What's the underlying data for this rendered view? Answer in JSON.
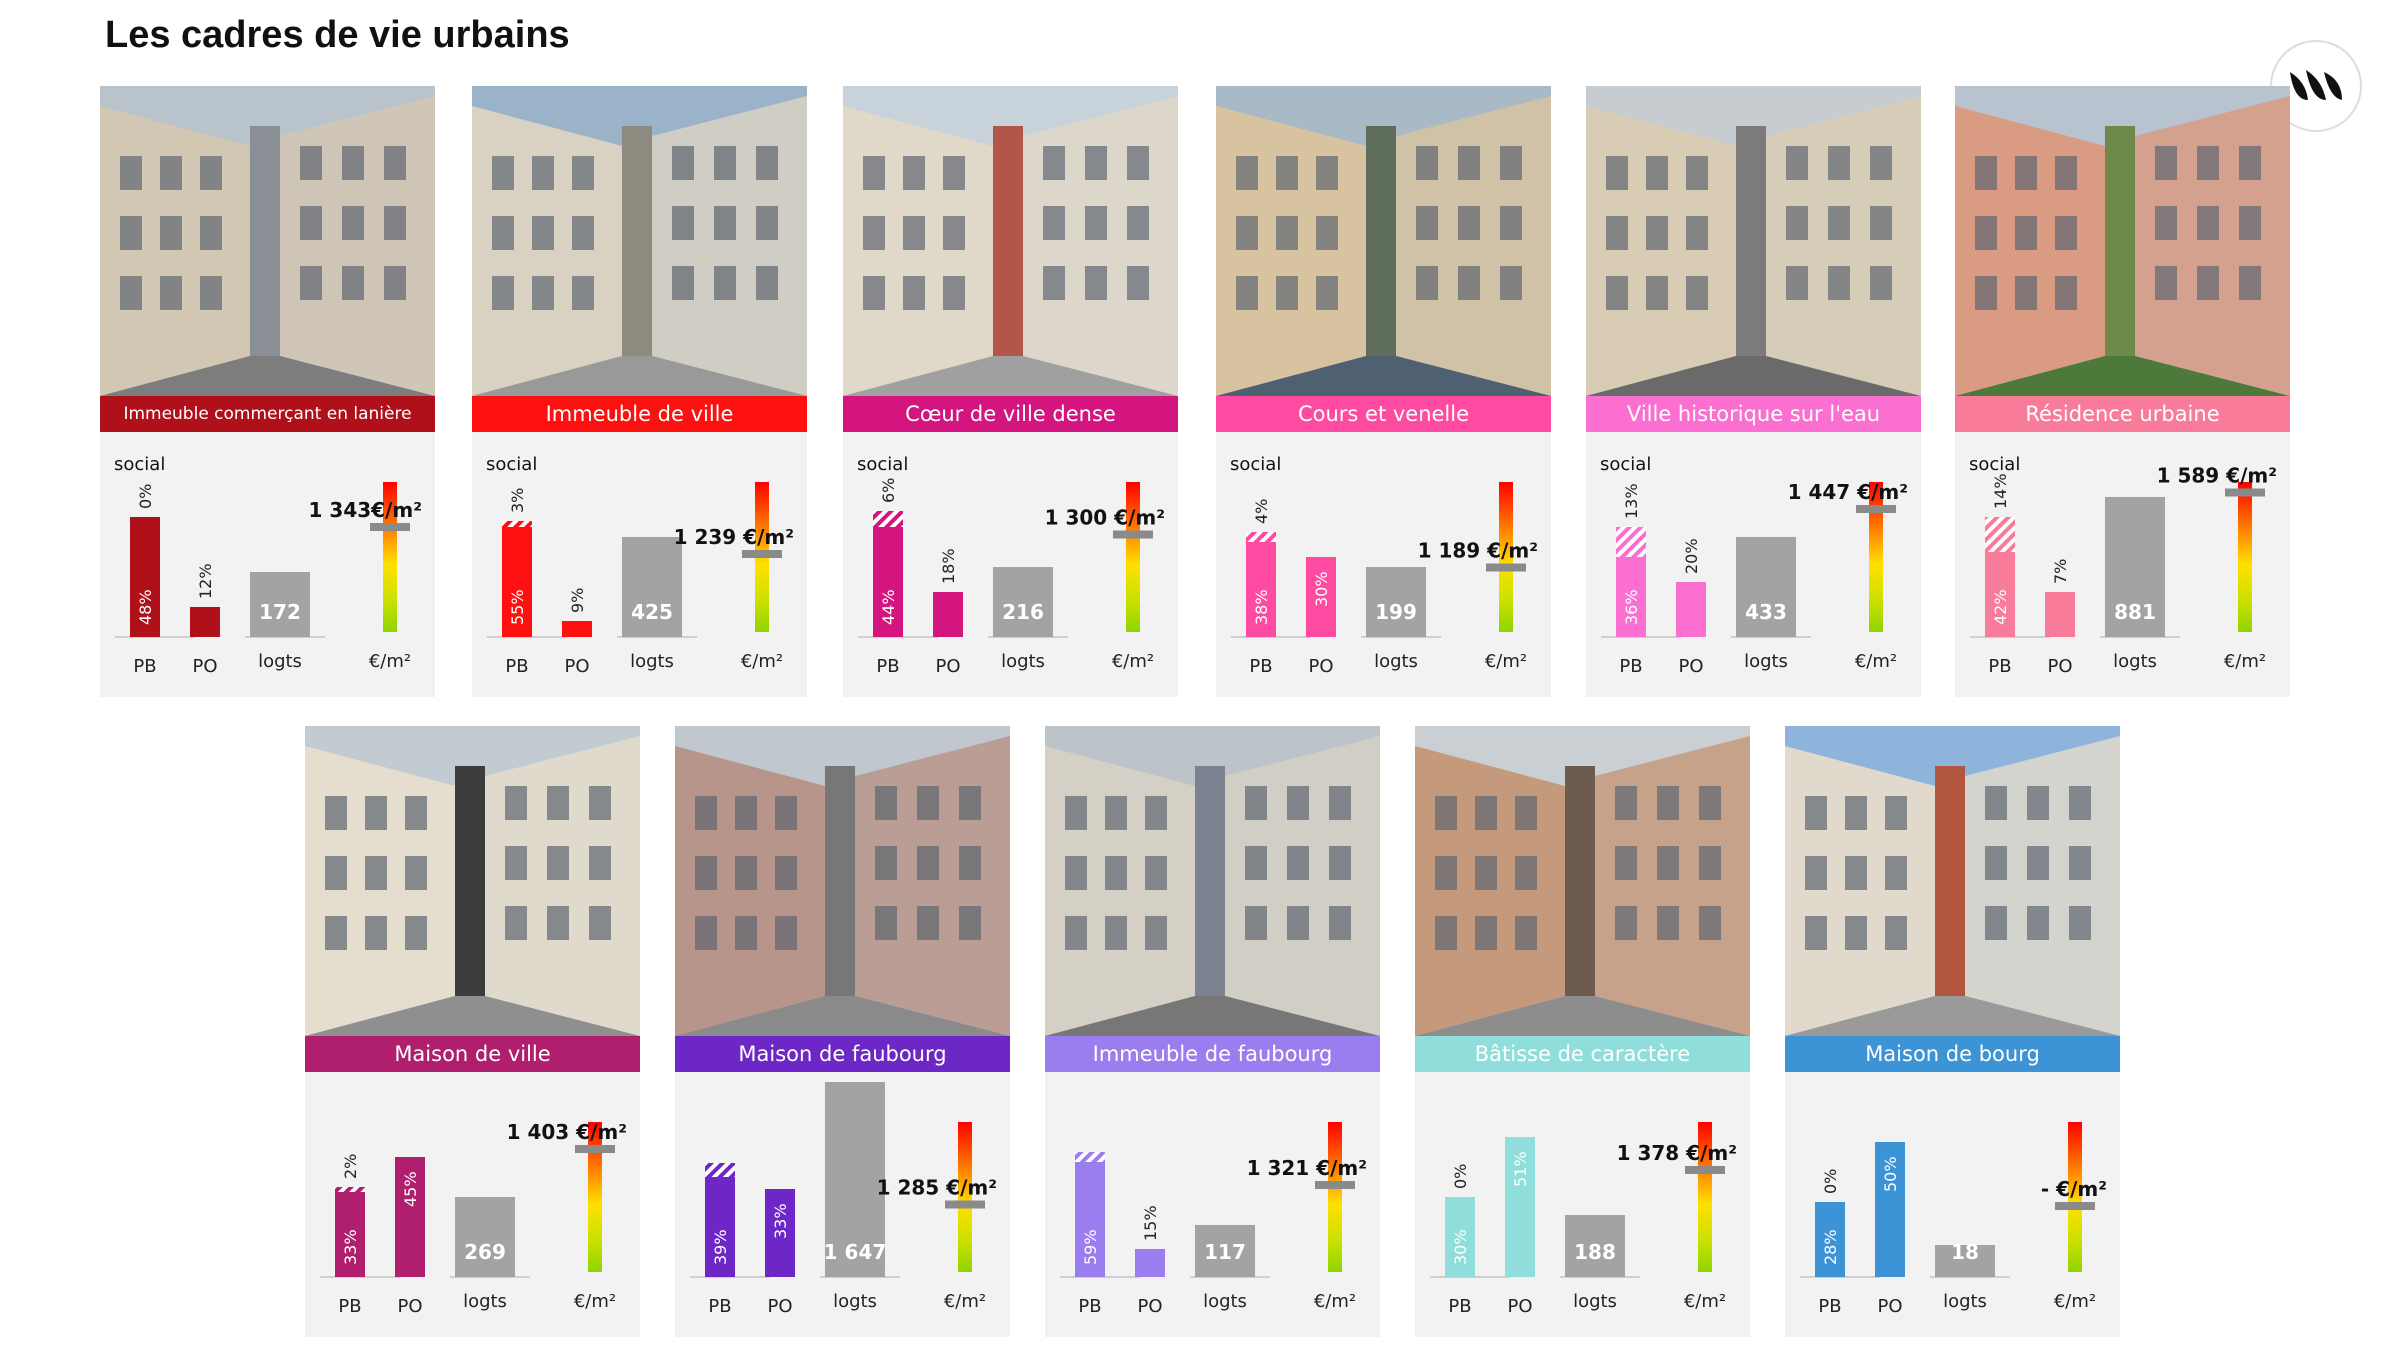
{
  "title": "Les cadres de vie urbains",
  "colors": {
    "panel": "#f2f2f2",
    "logts": "#a3a3a3"
  },
  "cards": [
    {
      "name": "Immeuble commerçant en lanière",
      "color": "#b0101a",
      "small": true,
      "pb": "48%",
      "pb_social": "0%",
      "po": "12%",
      "logts": "172",
      "price": "1 343€/m²",
      "show_social": true,
      "pb_h": 120,
      "soc_h": 0,
      "po_h": 30,
      "lg_h": 65,
      "marker": 0.3,
      "photo": {
        "sky": "#b9c3cc",
        "a": "#d2c7b3",
        "b": "#8a8f96",
        "ground": "#7d7d7d"
      }
    },
    {
      "name": "Immeuble de ville",
      "color": "#ff1010",
      "small": false,
      "pb": "55%",
      "pb_social": "3%",
      "po": "9%",
      "logts": "425",
      "price": "1 239 €/m²",
      "show_social": true,
      "pb_h": 110,
      "soc_h": 6,
      "po_h": 16,
      "lg_h": 100,
      "marker": 0.48,
      "photo": {
        "sky": "#9bb3c8",
        "a": "#d9d2c3",
        "b": "#8e8a80",
        "ground": "#999"
      }
    },
    {
      "name": "Cœur de ville dense",
      "color": "#d4147f",
      "small": false,
      "pb": "44%",
      "pb_social": "6%",
      "po": "18%",
      "logts": "216",
      "price": "1 300 €/m²",
      "show_social": true,
      "pb_h": 110,
      "soc_h": 16,
      "po_h": 45,
      "lg_h": 70,
      "marker": 0.35,
      "photo": {
        "sky": "#c8d2db",
        "a": "#e0d8c8",
        "b": "#b3564a",
        "ground": "#a0a0a0"
      }
    },
    {
      "name": "Cours et venelle",
      "color": "#ff4aa1",
      "small": false,
      "pb": "38%",
      "pb_social": "4%",
      "po": "30%",
      "logts": "199",
      "price": "1 189 €/m²",
      "show_social": true,
      "pb_h": 95,
      "soc_h": 10,
      "po_h": 80,
      "lg_h": 70,
      "marker": 0.57,
      "photo": {
        "sky": "#a9b9c6",
        "a": "#d7c3a0",
        "b": "#5d6d5a",
        "ground": "#4f6070"
      }
    },
    {
      "name": "Ville historique sur l'eau",
      "color": "#fb6fd0",
      "small": false,
      "pb": "36%",
      "pb_social": "13%",
      "po": "20%",
      "logts": "433",
      "price": "1 447 €/m²",
      "show_social": true,
      "pb_h": 80,
      "soc_h": 30,
      "po_h": 55,
      "lg_h": 100,
      "marker": 0.18,
      "photo": {
        "sky": "#c7ccd0",
        "a": "#d8cdb4",
        "b": "#7b7b7b",
        "ground": "#6a6a6a"
      }
    },
    {
      "name": "Résidence urbaine",
      "color": "#f87c99",
      "small": false,
      "pb": "42%",
      "pb_social": "14%",
      "po": "7%",
      "logts": "881",
      "price": "1 589 €/m²",
      "show_social": true,
      "pb_h": 85,
      "soc_h": 35,
      "po_h": 45,
      "lg_h": 140,
      "marker": 0.07,
      "photo": {
        "sky": "#b7c4cf",
        "a": "#d99b82",
        "b": "#6e8a4a",
        "ground": "#4d7a3a"
      }
    },
    {
      "name": "Maison de ville",
      "color": "#b01f6d",
      "small": false,
      "pb": "33%",
      "pb_social": "2%",
      "po": "45%",
      "logts": "269",
      "price": "1 403 €/m²",
      "show_social": false,
      "pb_h": 85,
      "soc_h": 5,
      "po_h": 120,
      "lg_h": 80,
      "marker": 0.18,
      "photo": {
        "sky": "#c3cbd2",
        "a": "#e5ddcd",
        "b": "#3d3d3d",
        "ground": "#8f8f8f"
      }
    },
    {
      "name": "Maison de faubourg",
      "color": "#6d27c7",
      "small": false,
      "pb": "39%",
      "pb_social": "",
      "po": "33%",
      "logts": "1 647",
      "price": "1 285 €/m²",
      "show_social": false,
      "pb_h": 100,
      "soc_h": 14,
      "po_h": 88,
      "lg_h": 195,
      "marker": 0.55,
      "photo": {
        "sky": "#c0c7ce",
        "a": "#b8958a",
        "b": "#777",
        "ground": "#8a8a8a"
      }
    },
    {
      "name": "Immeuble de faubourg",
      "color": "#9a7ef0",
      "small": false,
      "pb": "59%",
      "pb_social": "",
      "po": "15%",
      "logts": "117",
      "price": "1 321 €/m²",
      "show_social": false,
      "pb_h": 115,
      "soc_h": 10,
      "po_h": 28,
      "lg_h": 52,
      "marker": 0.42,
      "photo": {
        "sky": "#bcc3c9",
        "a": "#d5d0c6",
        "b": "#7c8290",
        "ground": "#777"
      }
    },
    {
      "name": "Bâtisse de caractère",
      "color": "#90dedb",
      "small": false,
      "pb": "30%",
      "pb_social": "0%",
      "po": "51%",
      "logts": "188",
      "price": "1 378 €/m²",
      "show_social": false,
      "pb_h": 80,
      "soc_h": 0,
      "po_h": 140,
      "lg_h": 62,
      "marker": 0.32,
      "photo": {
        "sky": "#c9cfd3",
        "a": "#c59a7c",
        "b": "#6d5b4d",
        "ground": "#8d8d8d"
      }
    },
    {
      "name": "Maison de bourg",
      "color": "#3c93d6",
      "small": false,
      "pb": "28%",
      "pb_social": "0%",
      "po": "50%",
      "logts": "18",
      "price": "- €/m²",
      "show_social": false,
      "pb_h": 75,
      "soc_h": 0,
      "po_h": 135,
      "lg_h": 32,
      "marker": 0.56,
      "photo": {
        "sky": "#8fb4dc",
        "a": "#e0d9cc",
        "b": "#b3563e",
        "ground": "#9a9a9a"
      }
    }
  ],
  "labels": {
    "pb": "PB",
    "po": "PO",
    "logts": "logts",
    "unit": "€/m²",
    "social": "social"
  }
}
